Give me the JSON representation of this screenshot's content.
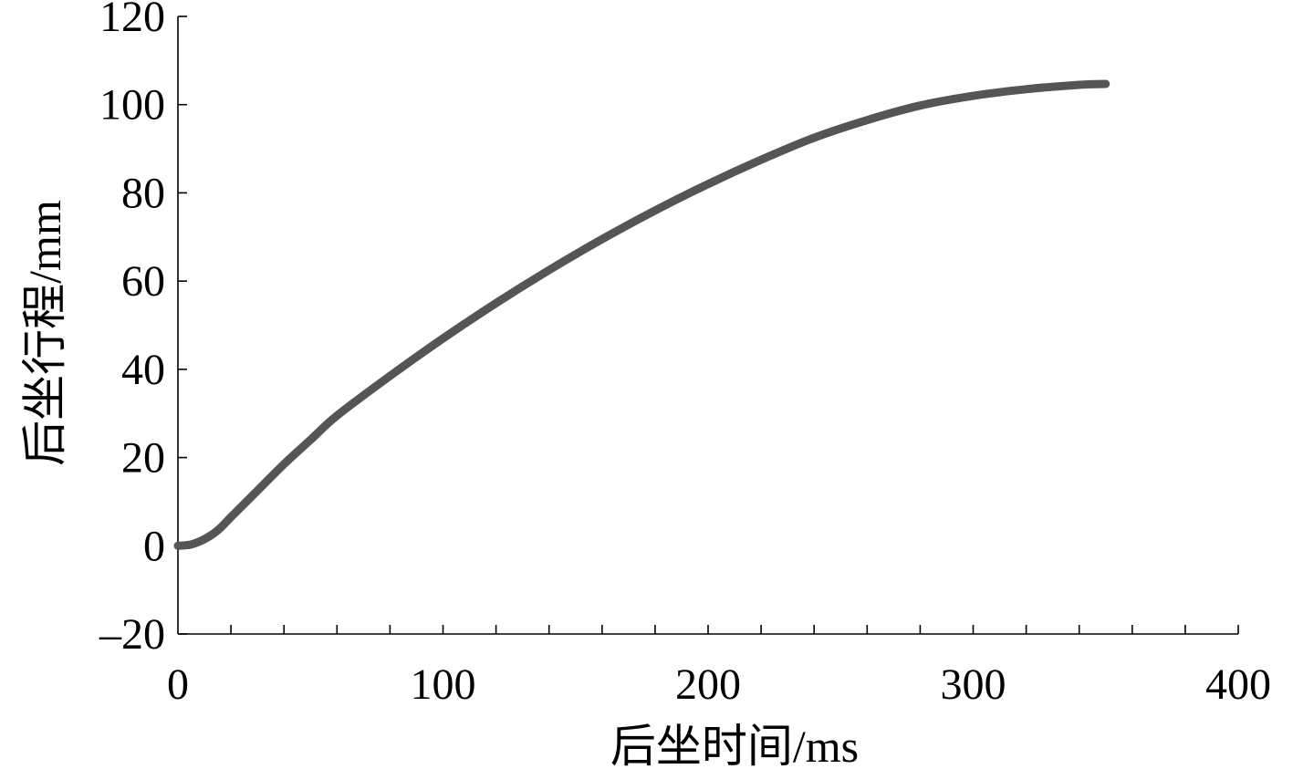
{
  "chart_data": {
    "type": "line",
    "title": "",
    "xlabel": "后坐时间/ms",
    "ylabel": "后坐行程/mm",
    "xlim": [
      0,
      400
    ],
    "ylim": [
      -20,
      120
    ],
    "x_ticks": [
      0,
      100,
      200,
      300,
      400
    ],
    "x_tick_labels": [
      "0",
      "100",
      "200",
      "300",
      "400"
    ],
    "x_minor_step": 20,
    "y_ticks": [
      -20,
      0,
      20,
      40,
      60,
      80,
      100,
      120
    ],
    "y_tick_labels": [
      "–20",
      "0",
      "20",
      "40",
      "60",
      "80",
      "100",
      "120"
    ],
    "grid": false,
    "legend": "none",
    "series": [
      {
        "color": "#555555",
        "x": [
          0,
          5,
          10,
          15,
          20,
          30,
          40,
          50,
          60,
          80,
          100,
          120,
          140,
          160,
          180,
          200,
          220,
          240,
          260,
          280,
          300,
          320,
          340,
          350
        ],
        "y": [
          0,
          0.3,
          1.5,
          3.5,
          6.5,
          12.5,
          18.5,
          24,
          29.5,
          38.5,
          47,
          55,
          62.5,
          69.5,
          76,
          82,
          87.5,
          92.5,
          96.5,
          99.8,
          102,
          103.5,
          104.5,
          104.7
        ]
      }
    ]
  }
}
